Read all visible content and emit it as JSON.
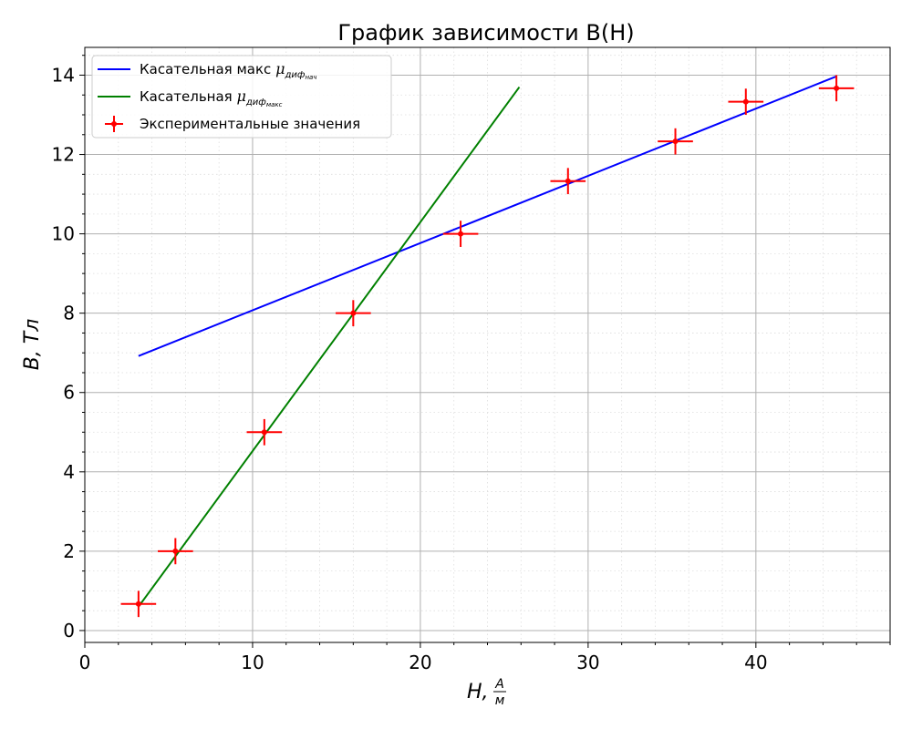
{
  "chart_data": {
    "type": "scatter",
    "title": "График зависимости B(H)",
    "xlabel": {
      "main": "H,",
      "frac_num": "A",
      "frac_den": "м"
    },
    "ylabel": "B, Тл",
    "xlim": [
      0,
      48
    ],
    "ylim": [
      -0.3,
      14.7
    ],
    "xticks": [
      0,
      10,
      20,
      30,
      40
    ],
    "yticks": [
      0,
      2,
      4,
      6,
      8,
      10,
      12,
      14
    ],
    "xminor_step": 2,
    "yminor_step": 0.5,
    "grid": {
      "major": true,
      "minor": true
    },
    "legend_position": "top-left",
    "lines": [
      {
        "name_main": "Касательная макс ",
        "name_mu": "μ",
        "name_sub": "диф",
        "name_subsub": "нач",
        "color": "#0000ff",
        "x": [
          3.2,
          44.8
        ],
        "y": [
          6.92,
          13.97
        ]
      },
      {
        "name_main": "Касательная ",
        "name_mu": "μ",
        "name_sub": "диф",
        "name_subsub": "макс",
        "color": "#008000",
        "x": [
          3.2,
          25.9
        ],
        "y": [
          0.6,
          13.7
        ]
      }
    ],
    "series": [
      {
        "name": "Экспериментальные значения",
        "color": "#ff0000",
        "x": [
          3.2,
          5.4,
          10.7,
          16.0,
          22.4,
          28.8,
          35.2,
          39.4,
          44.8
        ],
        "y": [
          0.67,
          2.0,
          5.0,
          8.0,
          10.0,
          11.33,
          12.33,
          13.33,
          13.67
        ],
        "xerr": 1.05,
        "yerr": 0.33
      }
    ]
  }
}
